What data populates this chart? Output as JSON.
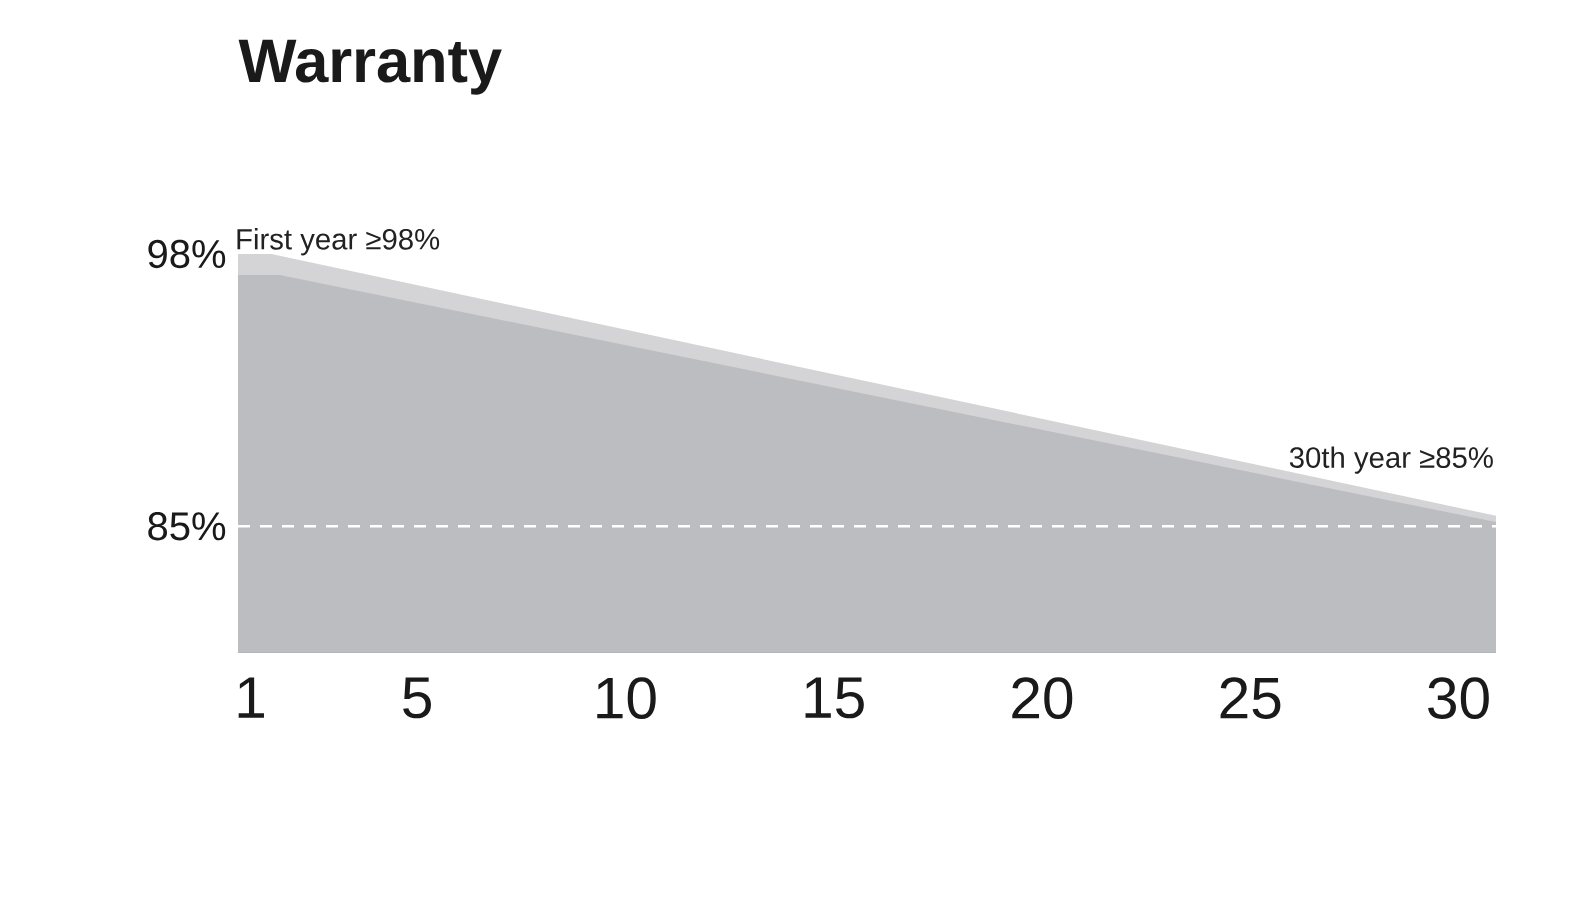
{
  "chart_data": {
    "type": "area",
    "title": "Warranty",
    "series": [
      {
        "color": "#d4d4d6",
        "x": [
          0.7,
          1.5,
          30.9
        ],
        "values": [
          98,
          98,
          85.5
        ]
      },
      {
        "color": "#bcbdc1",
        "x": [
          0.7,
          1.7,
          30.9
        ],
        "values": [
          97,
          97,
          85.2
        ]
      }
    ],
    "xlim": [
      0.7,
      30.9
    ],
    "ylim": [
      79,
      98
    ],
    "xticks": [
      1,
      5,
      10,
      15,
      20,
      25,
      30
    ],
    "yticks": [
      {
        "value": 98,
        "label": "98%"
      },
      {
        "value": 85,
        "label": "85%"
      }
    ],
    "ref_lines": [
      {
        "axis": "y",
        "value": 85,
        "color": "#ffffff",
        "line_style": "dashed"
      }
    ],
    "annotations": [
      {
        "text": "First year ≥98%",
        "x": 1,
        "y": 98
      },
      {
        "text": "30th year ≥85%",
        "x": 30,
        "y": 85
      }
    ]
  }
}
